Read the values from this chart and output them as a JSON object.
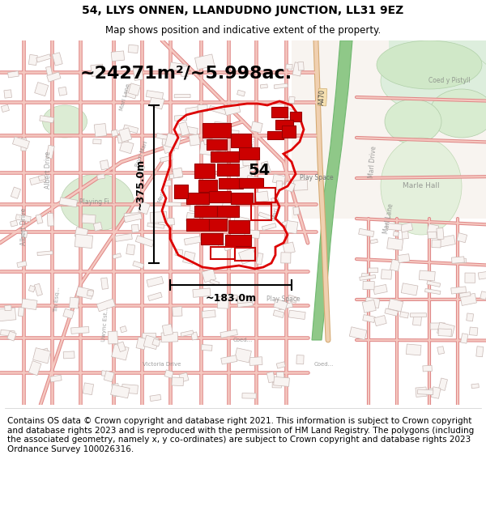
{
  "title_line1": "54, LLYS ONNEN, LLANDUDNO JUNCTION, LL31 9EZ",
  "title_line2": "Map shows position and indicative extent of the property.",
  "area_label": "~24271m²/~5.998ac.",
  "label_54": "54",
  "dim_vertical": "~375.0m",
  "dim_horizontal": "~183.0m",
  "footer_text": "Contains OS data © Crown copyright and database right 2021. This information is subject to Crown copyright and database rights 2023 and is reproduced with the permission of HM Land Registry. The polygons (including the associated geometry, namely x, y co-ordinates) are subject to Crown copyright and database rights 2023 Ordnance Survey 100026316.",
  "bg_color": "#ffffff",
  "map_bg": "#ffffff",
  "title_fontsize": 10,
  "subtitle_fontsize": 8.5,
  "area_fontsize": 16,
  "dim_fontsize": 9,
  "footer_fontsize": 7.5,
  "label_fontsize": 14,
  "road_color": "#f5c8c0",
  "road_edge_color": "#e08888",
  "building_color": "#e8e0dc",
  "building_edge": "#c8b8b4",
  "green_light": "#ddeedd",
  "green_dark": "#c8e0c0",
  "river_color": "#8fc888",
  "property_edge": "#dd0000",
  "property_fill": "#ff000015",
  "map_text_color": "#888888",
  "dim_arrow_color": "#000000"
}
